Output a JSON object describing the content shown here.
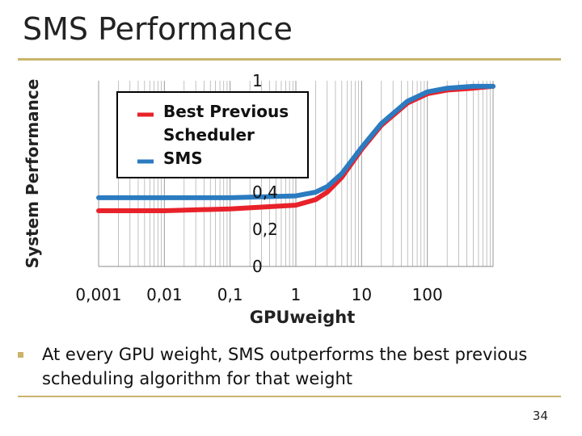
{
  "slide": {
    "title": "SMS Performance",
    "bullet": "At every GPU weight, SMS outperforms the best previous scheduling algorithm for that weight",
    "page_number": "34",
    "accent_color": "#c9b46b"
  },
  "chart_data": {
    "type": "line",
    "title": "",
    "xlabel": "GPUweight",
    "ylabel": "System Performance",
    "xscale": "log",
    "xlim": [
      0.001,
      1000
    ],
    "ylim": [
      0,
      1
    ],
    "x_tick_labels": [
      "0,001",
      "0,01",
      "0,1",
      "1",
      "10",
      "100"
    ],
    "y_tick_labels": [
      "0",
      "0,2",
      "0,4",
      "1"
    ],
    "legend_position": "top-left",
    "series": [
      {
        "name": "Best Previous Scheduler",
        "color": "#e8222a",
        "x": [
          0.001,
          0.01,
          0.1,
          1,
          2,
          3,
          5,
          10,
          20,
          50,
          100,
          200,
          500,
          1000
        ],
        "y": [
          0.3,
          0.3,
          0.31,
          0.33,
          0.36,
          0.4,
          0.48,
          0.63,
          0.76,
          0.88,
          0.93,
          0.95,
          0.96,
          0.97
        ]
      },
      {
        "name": "SMS",
        "color": "#2b7bc0",
        "x": [
          0.001,
          0.01,
          0.1,
          1,
          2,
          3,
          5,
          10,
          20,
          50,
          100,
          200,
          500,
          1000
        ],
        "y": [
          0.37,
          0.37,
          0.37,
          0.38,
          0.4,
          0.43,
          0.5,
          0.64,
          0.77,
          0.89,
          0.94,
          0.96,
          0.97,
          0.97
        ]
      }
    ]
  }
}
